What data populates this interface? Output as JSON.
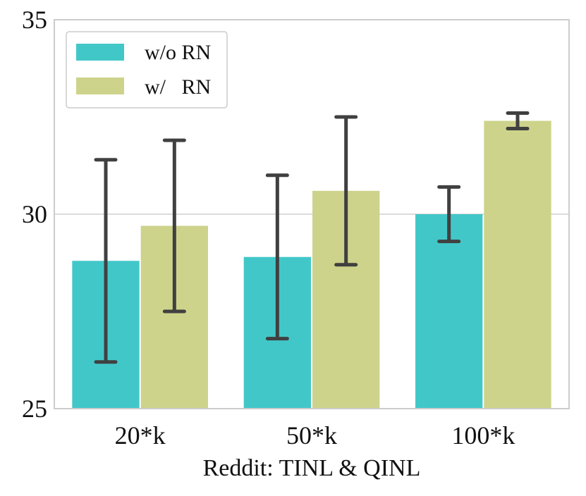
{
  "chart_data": {
    "type": "bar",
    "title": "",
    "xlabel": "Reddit: TINL & QINL",
    "ylabel": "",
    "ylim": [
      25,
      35
    ],
    "yticks": [
      "25",
      "30",
      "35"
    ],
    "grid": true,
    "categories": [
      "20*k",
      "50*k",
      "100*k"
    ],
    "series": [
      {
        "name": "w/o RN",
        "color": "#42c7c9",
        "values": [
          28.8,
          28.9,
          30.0
        ],
        "err_low": [
          26.2,
          26.8,
          29.3
        ],
        "err_high": [
          31.4,
          31.0,
          30.7
        ]
      },
      {
        "name": "w/   RN",
        "color": "#cdd38a",
        "values": [
          29.7,
          30.6,
          32.4
        ],
        "err_low": [
          27.5,
          28.7,
          32.2
        ],
        "err_high": [
          31.9,
          32.5,
          32.6
        ]
      }
    ],
    "legend": {
      "position": "top-left",
      "entries": [
        "w/o RN",
        "w/   RN"
      ]
    },
    "colors": {
      "errorbar": "#404040",
      "grid": "#d0d0d0",
      "frame": "#cccccc"
    }
  }
}
